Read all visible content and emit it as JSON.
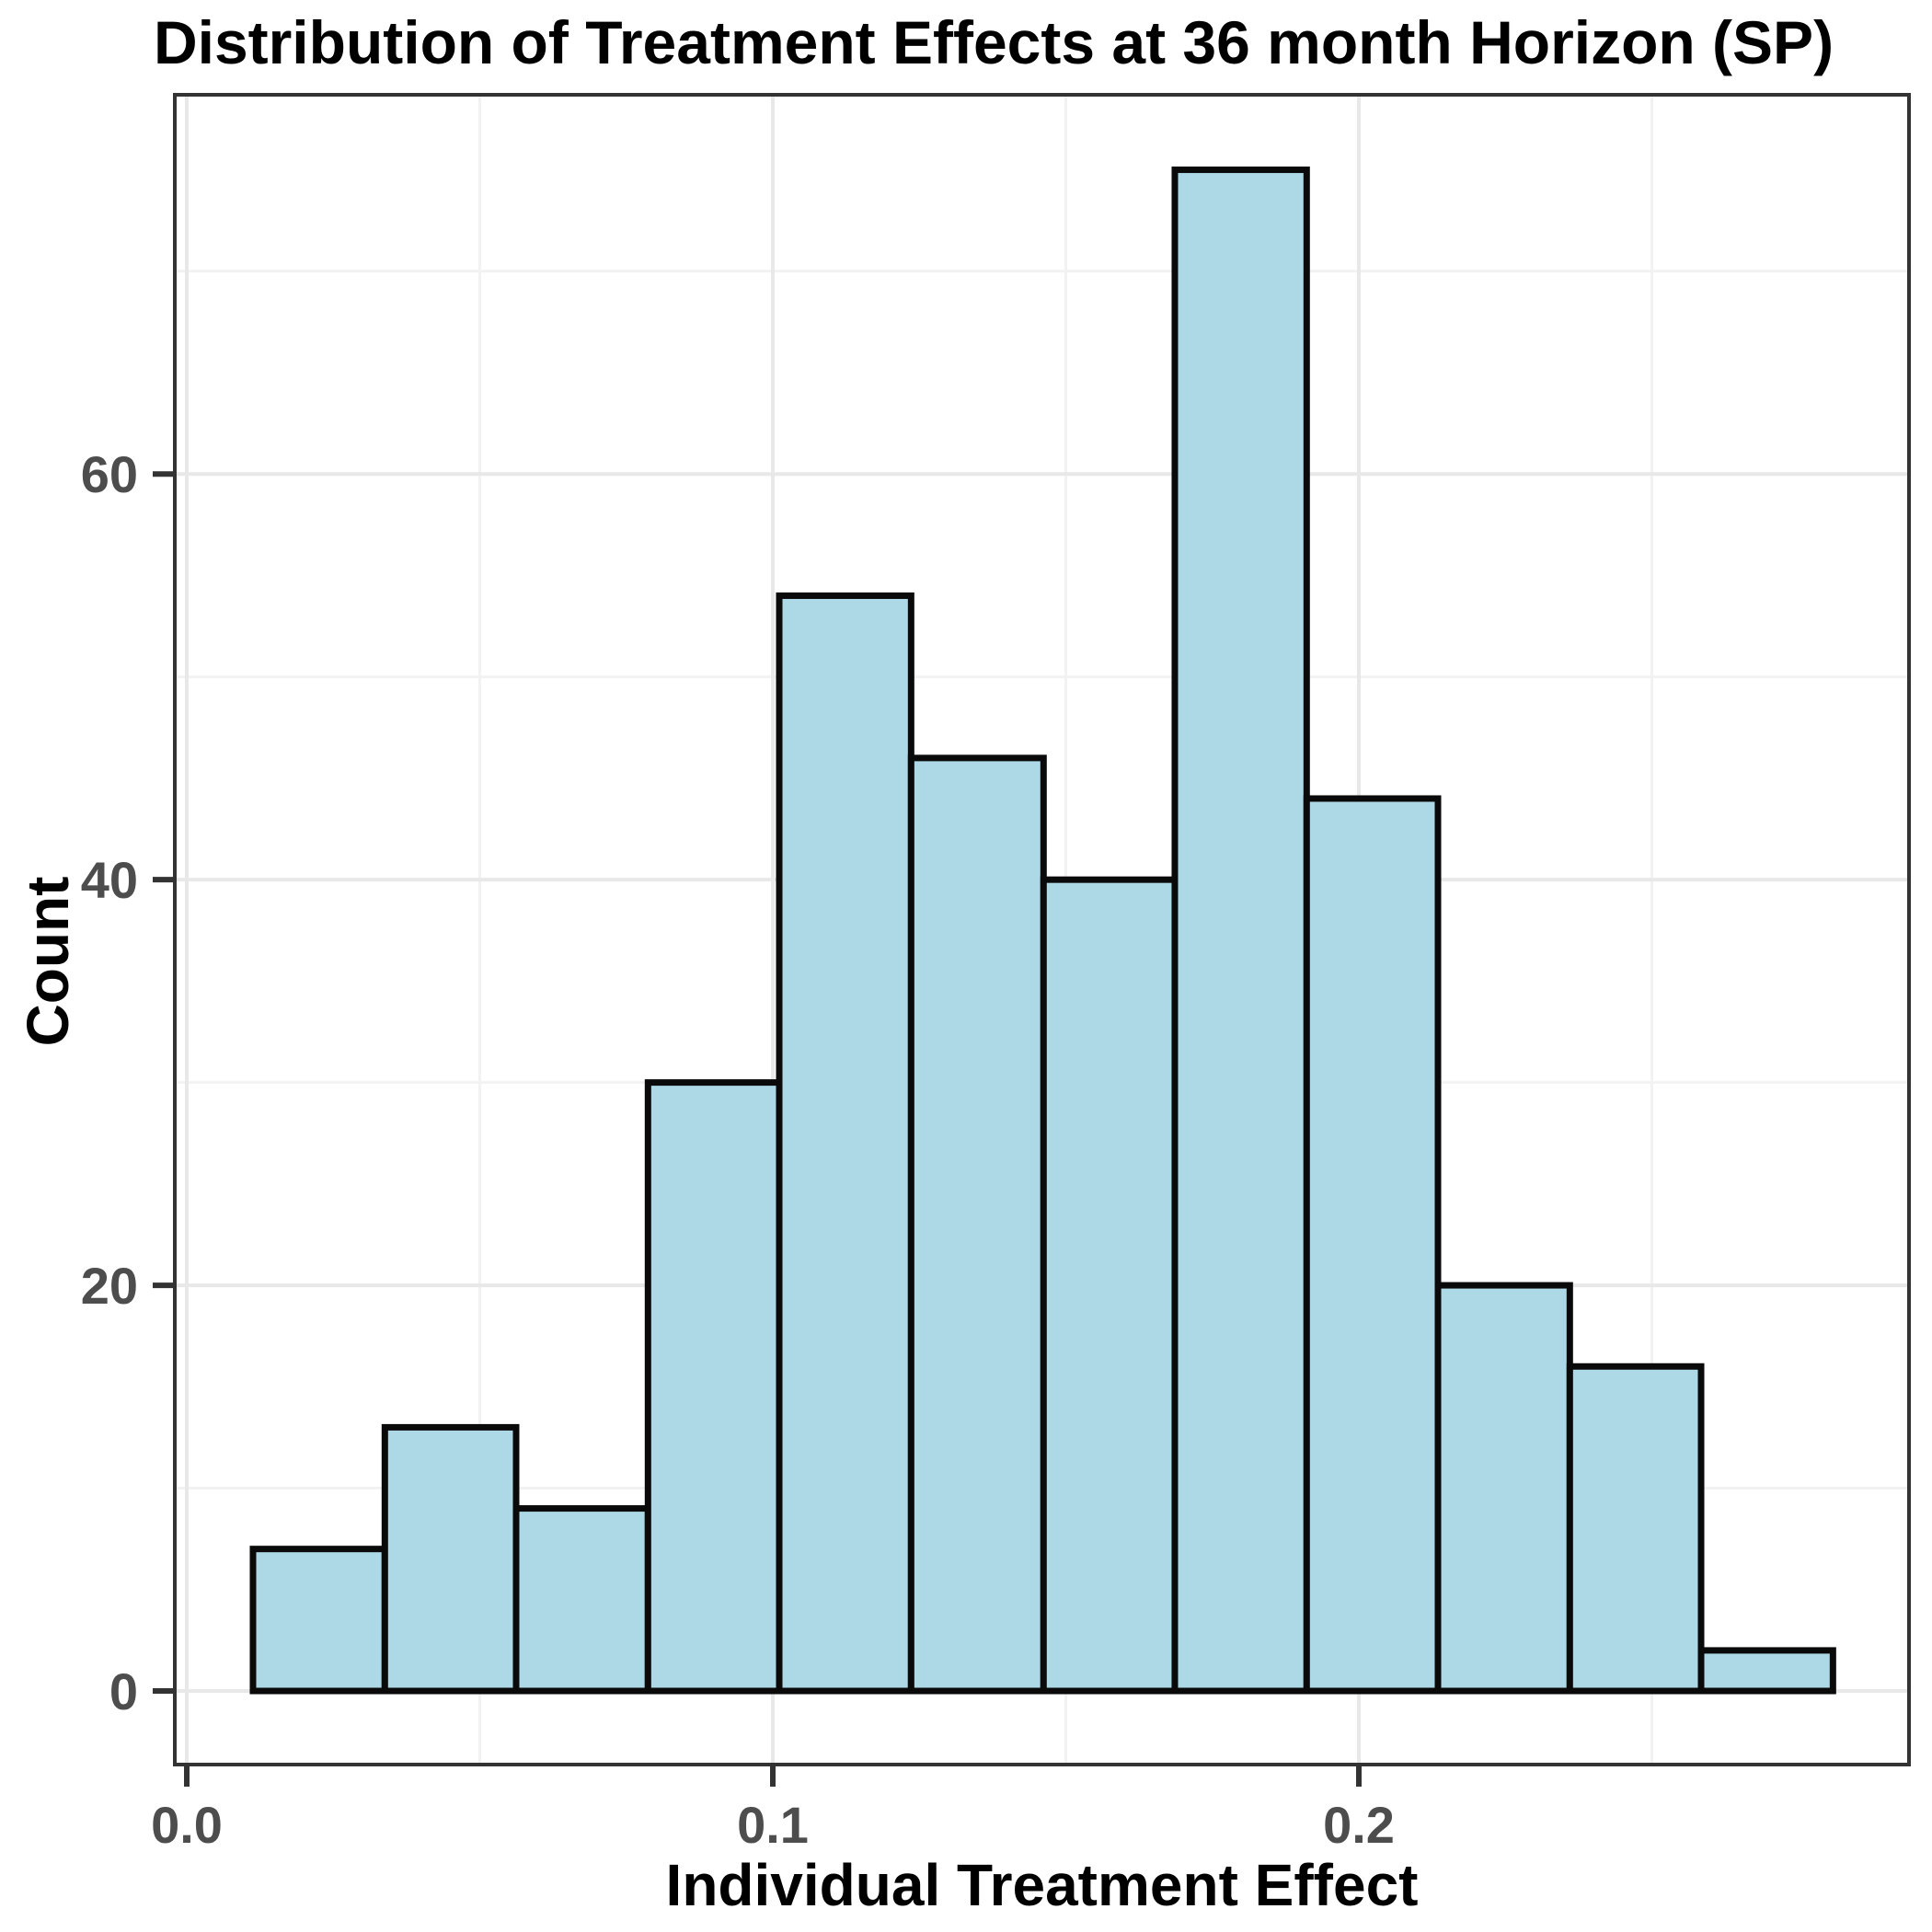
{
  "chart_data": {
    "type": "bar",
    "subtype": "histogram",
    "title": "Distribution of Treatment Effects at 36 month Horizon (SP)",
    "xlabel": "Individual Treatment Effect",
    "ylabel": "Count",
    "bin_edges": [
      0.0113,
      0.0338,
      0.0562,
      0.0787,
      0.1011,
      0.1236,
      0.1462,
      0.1686,
      0.1911,
      0.2135,
      0.236,
      0.2584,
      0.2809
    ],
    "counts": [
      7,
      13,
      9,
      30,
      54,
      46,
      40,
      75,
      44,
      20,
      16,
      2
    ],
    "x_ticks": [
      0.0,
      0.1,
      0.2
    ],
    "x_tick_labels": [
      "0.0",
      "0.1",
      "0.2"
    ],
    "x_minor_ticks": [
      0.05,
      0.15,
      0.25
    ],
    "y_ticks": [
      0,
      20,
      40,
      60
    ],
    "y_tick_labels": [
      "0",
      "20",
      "40",
      "60"
    ],
    "y_minor_ticks": [
      10,
      30,
      50,
      70
    ],
    "xlim": [
      -0.0022,
      0.2944
    ],
    "ylim": [
      -3.6,
      78.75
    ],
    "grid": true,
    "legend": false,
    "colors": {
      "bar_fill": "#ADD8E6",
      "bar_stroke": "#0a0a0a",
      "panel_background": "#FFFFFF",
      "grid_major": "#E8E8E8",
      "grid_minor": "#F2F2F2",
      "panel_border": "#333333",
      "tick_mark": "#333333",
      "tick_label_color": "#4D4D4D",
      "axis_title_color": "#000000"
    }
  }
}
